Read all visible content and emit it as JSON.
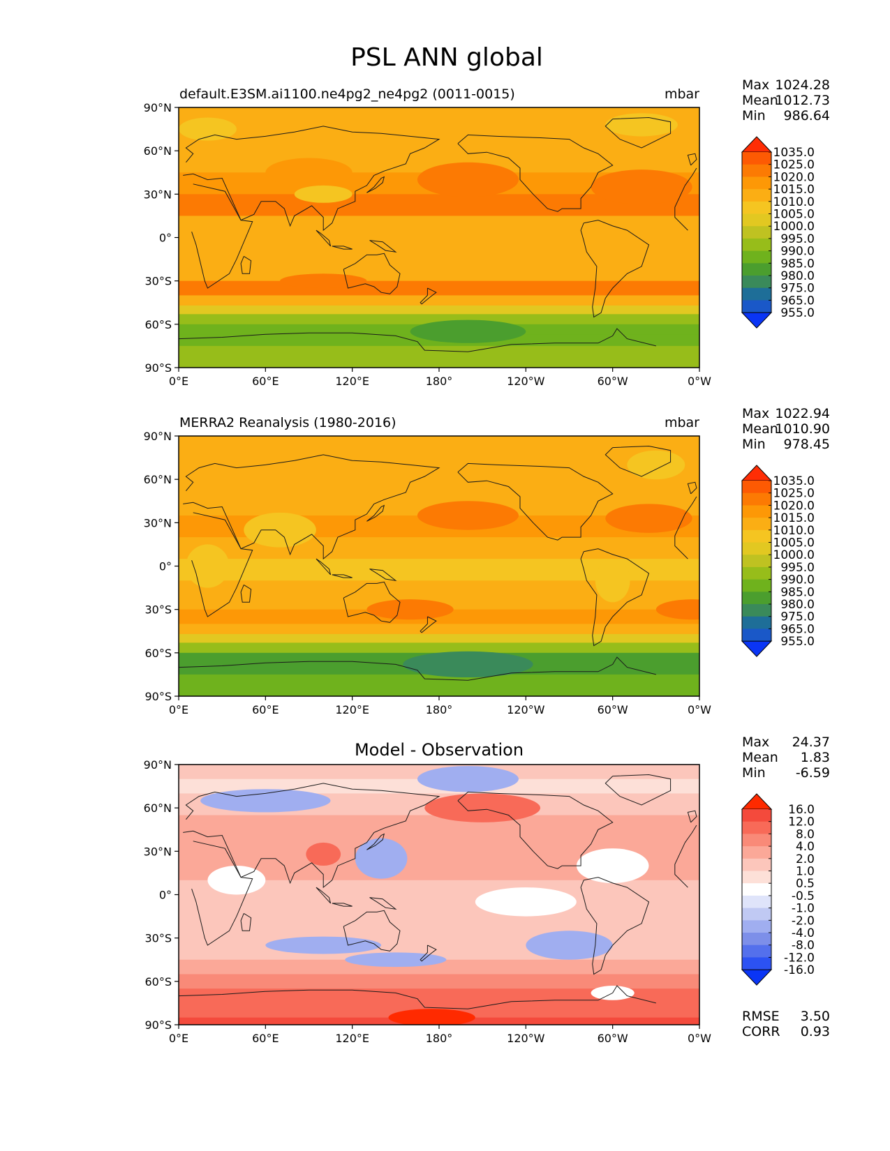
{
  "figure_title": "PSL ANN global",
  "colors": {
    "frame": "#000000",
    "coast": "#1a1a1a"
  },
  "chart_data": [
    {
      "type": "heatmap",
      "id": "test",
      "title": "default.E3SM.ai1100.ne4pg2_ne4pg2 (0011-0015)",
      "units": "mbar",
      "x_ticks": [
        "0°E",
        "60°E",
        "120°E",
        "180°",
        "120°W",
        "60°W",
        "0°W"
      ],
      "y_ticks": [
        "90°N",
        "60°N",
        "30°N",
        "0°",
        "30°S",
        "60°S",
        "90°S"
      ],
      "xlim": [
        0,
        360
      ],
      "ylim": [
        -90,
        90
      ],
      "stats": [
        {
          "label": "Max",
          "value": "1024.28"
        },
        {
          "label": "Mean",
          "value": "1012.73"
        },
        {
          "label": "Min",
          "value": "986.64"
        }
      ],
      "colorbar": {
        "levels": [
          "1035.0",
          "1025.0",
          "1020.0",
          "1015.0",
          "1010.0",
          "1005.0",
          "1000.0",
          "995.0",
          "990.0",
          "985.0",
          "980.0",
          "975.0",
          "965.0",
          "955.0"
        ],
        "colors": [
          "#ff2d05",
          "#fd5a03",
          "#fc7a03",
          "#fd9806",
          "#fbae14",
          "#f5c521",
          "#e2c821",
          "#bfc221",
          "#97bd1a",
          "#6fb21d",
          "#4b9e2e",
          "#3a8a5a",
          "#1e6e98",
          "#1a58c8",
          "#0a35f5"
        ]
      },
      "field_levels": [
        {
          "lat": 90,
          "level": 4
        },
        {
          "lat": 80,
          "level": 4
        },
        {
          "lat": 65,
          "level": 4
        },
        {
          "lat": 45,
          "level": 3
        },
        {
          "lat": 30,
          "level": 2
        },
        {
          "lat": 15,
          "level": 4
        },
        {
          "lat": 0,
          "level": 4
        },
        {
          "lat": -15,
          "level": 4
        },
        {
          "lat": -30,
          "level": 2
        },
        {
          "lat": -40,
          "level": 4
        },
        {
          "lat": -47,
          "level": 6
        },
        {
          "lat": -53,
          "level": 8
        },
        {
          "lat": -60,
          "level": 9
        },
        {
          "lat": -67,
          "level": 9
        },
        {
          "lat": -75,
          "level": 8
        },
        {
          "lat": -90,
          "level": 7
        }
      ],
      "features": [
        {
          "lon": 200,
          "lat": 40,
          "rlon": 35,
          "rlat": 12,
          "level": 2
        },
        {
          "lon": 320,
          "lat": 35,
          "rlon": 35,
          "rlat": 12,
          "level": 2
        },
        {
          "lon": 90,
          "lat": 45,
          "rlon": 30,
          "rlat": 10,
          "level": 3
        },
        {
          "lon": 100,
          "lat": -30,
          "rlon": 30,
          "rlat": 5,
          "level": 2
        },
        {
          "lon": 20,
          "lat": 75,
          "rlon": 20,
          "rlat": 8,
          "level": 5
        },
        {
          "lon": 320,
          "lat": 78,
          "rlon": 25,
          "rlat": 8,
          "level": 5
        },
        {
          "lon": 100,
          "lat": 30,
          "rlon": 20,
          "rlat": 6,
          "level": 5
        },
        {
          "lon": 200,
          "lat": -65,
          "rlon": 40,
          "rlat": 8,
          "level": 10
        }
      ]
    },
    {
      "type": "heatmap",
      "id": "ref",
      "title": "MERRA2 Reanalysis (1980-2016)",
      "units": "mbar",
      "x_ticks": [
        "0°E",
        "60°E",
        "120°E",
        "180°",
        "120°W",
        "60°W",
        "0°W"
      ],
      "y_ticks": [
        "90°N",
        "60°N",
        "30°N",
        "0°",
        "30°S",
        "60°S",
        "90°S"
      ],
      "xlim": [
        0,
        360
      ],
      "ylim": [
        -90,
        90
      ],
      "stats": [
        {
          "label": "Max",
          "value": "1022.94"
        },
        {
          "label": "Mean",
          "value": "1010.90"
        },
        {
          "label": "Min",
          "value": "978.45"
        }
      ],
      "colorbar": {
        "levels": [
          "1035.0",
          "1025.0",
          "1020.0",
          "1015.0",
          "1010.0",
          "1005.0",
          "1000.0",
          "995.0",
          "990.0",
          "985.0",
          "980.0",
          "975.0",
          "965.0",
          "955.0"
        ],
        "colors": [
          "#ff2d05",
          "#fd5a03",
          "#fc7a03",
          "#fd9806",
          "#fbae14",
          "#f5c521",
          "#e2c821",
          "#bfc221",
          "#97bd1a",
          "#6fb21d",
          "#4b9e2e",
          "#3a8a5a",
          "#1e6e98",
          "#1a58c8",
          "#0a35f5"
        ]
      },
      "field_levels": [
        {
          "lat": 90,
          "level": 4
        },
        {
          "lat": 75,
          "level": 4
        },
        {
          "lat": 55,
          "level": 4
        },
        {
          "lat": 35,
          "level": 3
        },
        {
          "lat": 20,
          "level": 4
        },
        {
          "lat": 5,
          "level": 5
        },
        {
          "lat": -10,
          "level": 4
        },
        {
          "lat": -30,
          "level": 3
        },
        {
          "lat": -40,
          "level": 4
        },
        {
          "lat": -47,
          "level": 6
        },
        {
          "lat": -53,
          "level": 8
        },
        {
          "lat": -60,
          "level": 10
        },
        {
          "lat": -67,
          "level": 10
        },
        {
          "lat": -75,
          "level": 9
        },
        {
          "lat": -90,
          "level": 7
        }
      ],
      "features": [
        {
          "lon": 200,
          "lat": 35,
          "rlon": 35,
          "rlat": 10,
          "level": 2
        },
        {
          "lon": 325,
          "lat": 33,
          "rlon": 30,
          "rlat": 10,
          "level": 2
        },
        {
          "lon": 160,
          "lat": -30,
          "rlon": 30,
          "rlat": 7,
          "level": 2
        },
        {
          "lon": 355,
          "lat": -30,
          "rlon": 25,
          "rlat": 7,
          "level": 2
        },
        {
          "lon": 20,
          "lat": 0,
          "rlon": 15,
          "rlat": 15,
          "level": 5
        },
        {
          "lon": 70,
          "lat": 25,
          "rlon": 25,
          "rlat": 12,
          "level": 5
        },
        {
          "lon": 300,
          "lat": -10,
          "rlon": 12,
          "rlat": 15,
          "level": 5
        },
        {
          "lon": 330,
          "lat": 70,
          "rlon": 20,
          "rlat": 10,
          "level": 5
        },
        {
          "lon": 200,
          "lat": -68,
          "rlon": 45,
          "rlat": 9,
          "level": 11
        }
      ]
    },
    {
      "type": "heatmap",
      "id": "diff",
      "title": "Model - Observation",
      "units": "",
      "x_ticks": [
        "0°E",
        "60°E",
        "120°E",
        "180°",
        "120°W",
        "60°W",
        "0°W"
      ],
      "y_ticks": [
        "90°N",
        "60°N",
        "30°N",
        "0°",
        "30°S",
        "60°S",
        "90°S"
      ],
      "xlim": [
        0,
        360
      ],
      "ylim": [
        -90,
        90
      ],
      "stats": [
        {
          "label": "Max",
          "value": "24.37"
        },
        {
          "label": "Mean",
          "value": "1.83"
        },
        {
          "label": "Min",
          "value": "-6.59"
        }
      ],
      "extra_stats": [
        {
          "label": "RMSE",
          "value": "3.50"
        },
        {
          "label": "CORR",
          "value": "0.93"
        }
      ],
      "colorbar": {
        "levels": [
          "16.0",
          "12.0",
          "8.0",
          "4.0",
          "2.0",
          "1.0",
          "0.5",
          "-0.5",
          "-1.0",
          "-2.0",
          "-4.0",
          "-8.0",
          "-12.0",
          "-16.0"
        ],
        "colors": [
          "#ff2a00",
          "#f44a3c",
          "#f86a58",
          "#f98a78",
          "#fba898",
          "#fcc6bb",
          "#fde0d8",
          "#ffffff",
          "#dfe4fa",
          "#c0c9f3",
          "#a0aef0",
          "#7d8fe9",
          "#5470ec",
          "#2c52f3",
          "#0a35f5"
        ]
      },
      "field_levels": [
        {
          "lat": 90,
          "level": 5
        },
        {
          "lat": 80,
          "level": 6
        },
        {
          "lat": 70,
          "level": 5
        },
        {
          "lat": 55,
          "level": 4
        },
        {
          "lat": 40,
          "level": 4
        },
        {
          "lat": 25,
          "level": 4
        },
        {
          "lat": 10,
          "level": 5
        },
        {
          "lat": 0,
          "level": 5
        },
        {
          "lat": -15,
          "level": 5
        },
        {
          "lat": -30,
          "level": 5
        },
        {
          "lat": -45,
          "level": 4
        },
        {
          "lat": -55,
          "level": 3
        },
        {
          "lat": -65,
          "level": 2
        },
        {
          "lat": -75,
          "level": 2
        },
        {
          "lat": -85,
          "level": 1
        },
        {
          "lat": -90,
          "level": 0
        }
      ],
      "features": [
        {
          "lon": 60,
          "lat": 65,
          "rlon": 45,
          "rlat": 8,
          "level": 10
        },
        {
          "lon": 200,
          "lat": 80,
          "rlon": 35,
          "rlat": 9,
          "level": 10
        },
        {
          "lon": 140,
          "lat": 25,
          "rlon": 18,
          "rlat": 14,
          "level": 10
        },
        {
          "lon": 100,
          "lat": -35,
          "rlon": 40,
          "rlat": 6,
          "level": 10
        },
        {
          "lon": 150,
          "lat": -45,
          "rlon": 35,
          "rlat": 5,
          "level": 10
        },
        {
          "lon": 270,
          "lat": -35,
          "rlon": 30,
          "rlat": 10,
          "level": 10
        },
        {
          "lon": 100,
          "lat": 28,
          "rlon": 12,
          "rlat": 8,
          "level": 2
        },
        {
          "lon": 210,
          "lat": 60,
          "rlon": 40,
          "rlat": 10,
          "level": 2
        },
        {
          "lon": 240,
          "lat": -5,
          "rlon": 35,
          "rlat": 10,
          "level": 7
        },
        {
          "lon": 40,
          "lat": 10,
          "rlon": 20,
          "rlat": 10,
          "level": 7
        },
        {
          "lon": 300,
          "lat": 20,
          "rlon": 25,
          "rlat": 12,
          "level": 7
        },
        {
          "lon": 175,
          "lat": -85,
          "rlon": 30,
          "rlat": 6,
          "level": 0
        },
        {
          "lon": 300,
          "lat": -68,
          "rlon": 15,
          "rlat": 5,
          "level": 7
        }
      ]
    }
  ]
}
